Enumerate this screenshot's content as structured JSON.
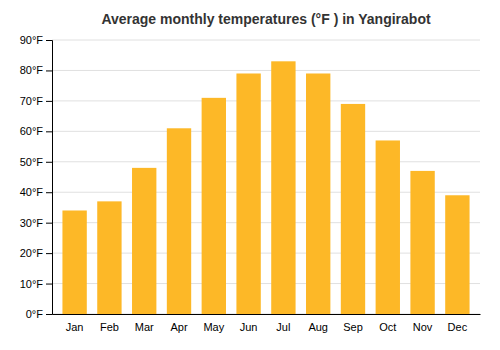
{
  "chart_data": {
    "type": "bar",
    "title": "Average monthly temperatures (°F ) in Yangirabot",
    "categories": [
      "Jan",
      "Feb",
      "Mar",
      "Apr",
      "May",
      "Jun",
      "Jul",
      "Aug",
      "Sep",
      "Oct",
      "Nov",
      "Dec"
    ],
    "values": [
      34,
      37,
      48,
      61,
      71,
      79,
      83,
      79,
      69,
      57,
      47,
      39
    ],
    "color": "#FDB827",
    "ylim": [
      0,
      90
    ],
    "yticks": [
      {
        "value": 0,
        "label": "0°F"
      },
      {
        "value": 10,
        "label": "10°F"
      },
      {
        "value": 20,
        "label": "20°F"
      },
      {
        "value": 30,
        "label": "30°F"
      },
      {
        "value": 40,
        "label": "40°F"
      },
      {
        "value": 50,
        "label": "50°F"
      },
      {
        "value": 60,
        "label": "60°F"
      },
      {
        "value": 70,
        "label": "70°F"
      },
      {
        "value": 80,
        "label": "80°F"
      },
      {
        "value": 90,
        "label": "90°F"
      }
    ],
    "grid": true
  }
}
